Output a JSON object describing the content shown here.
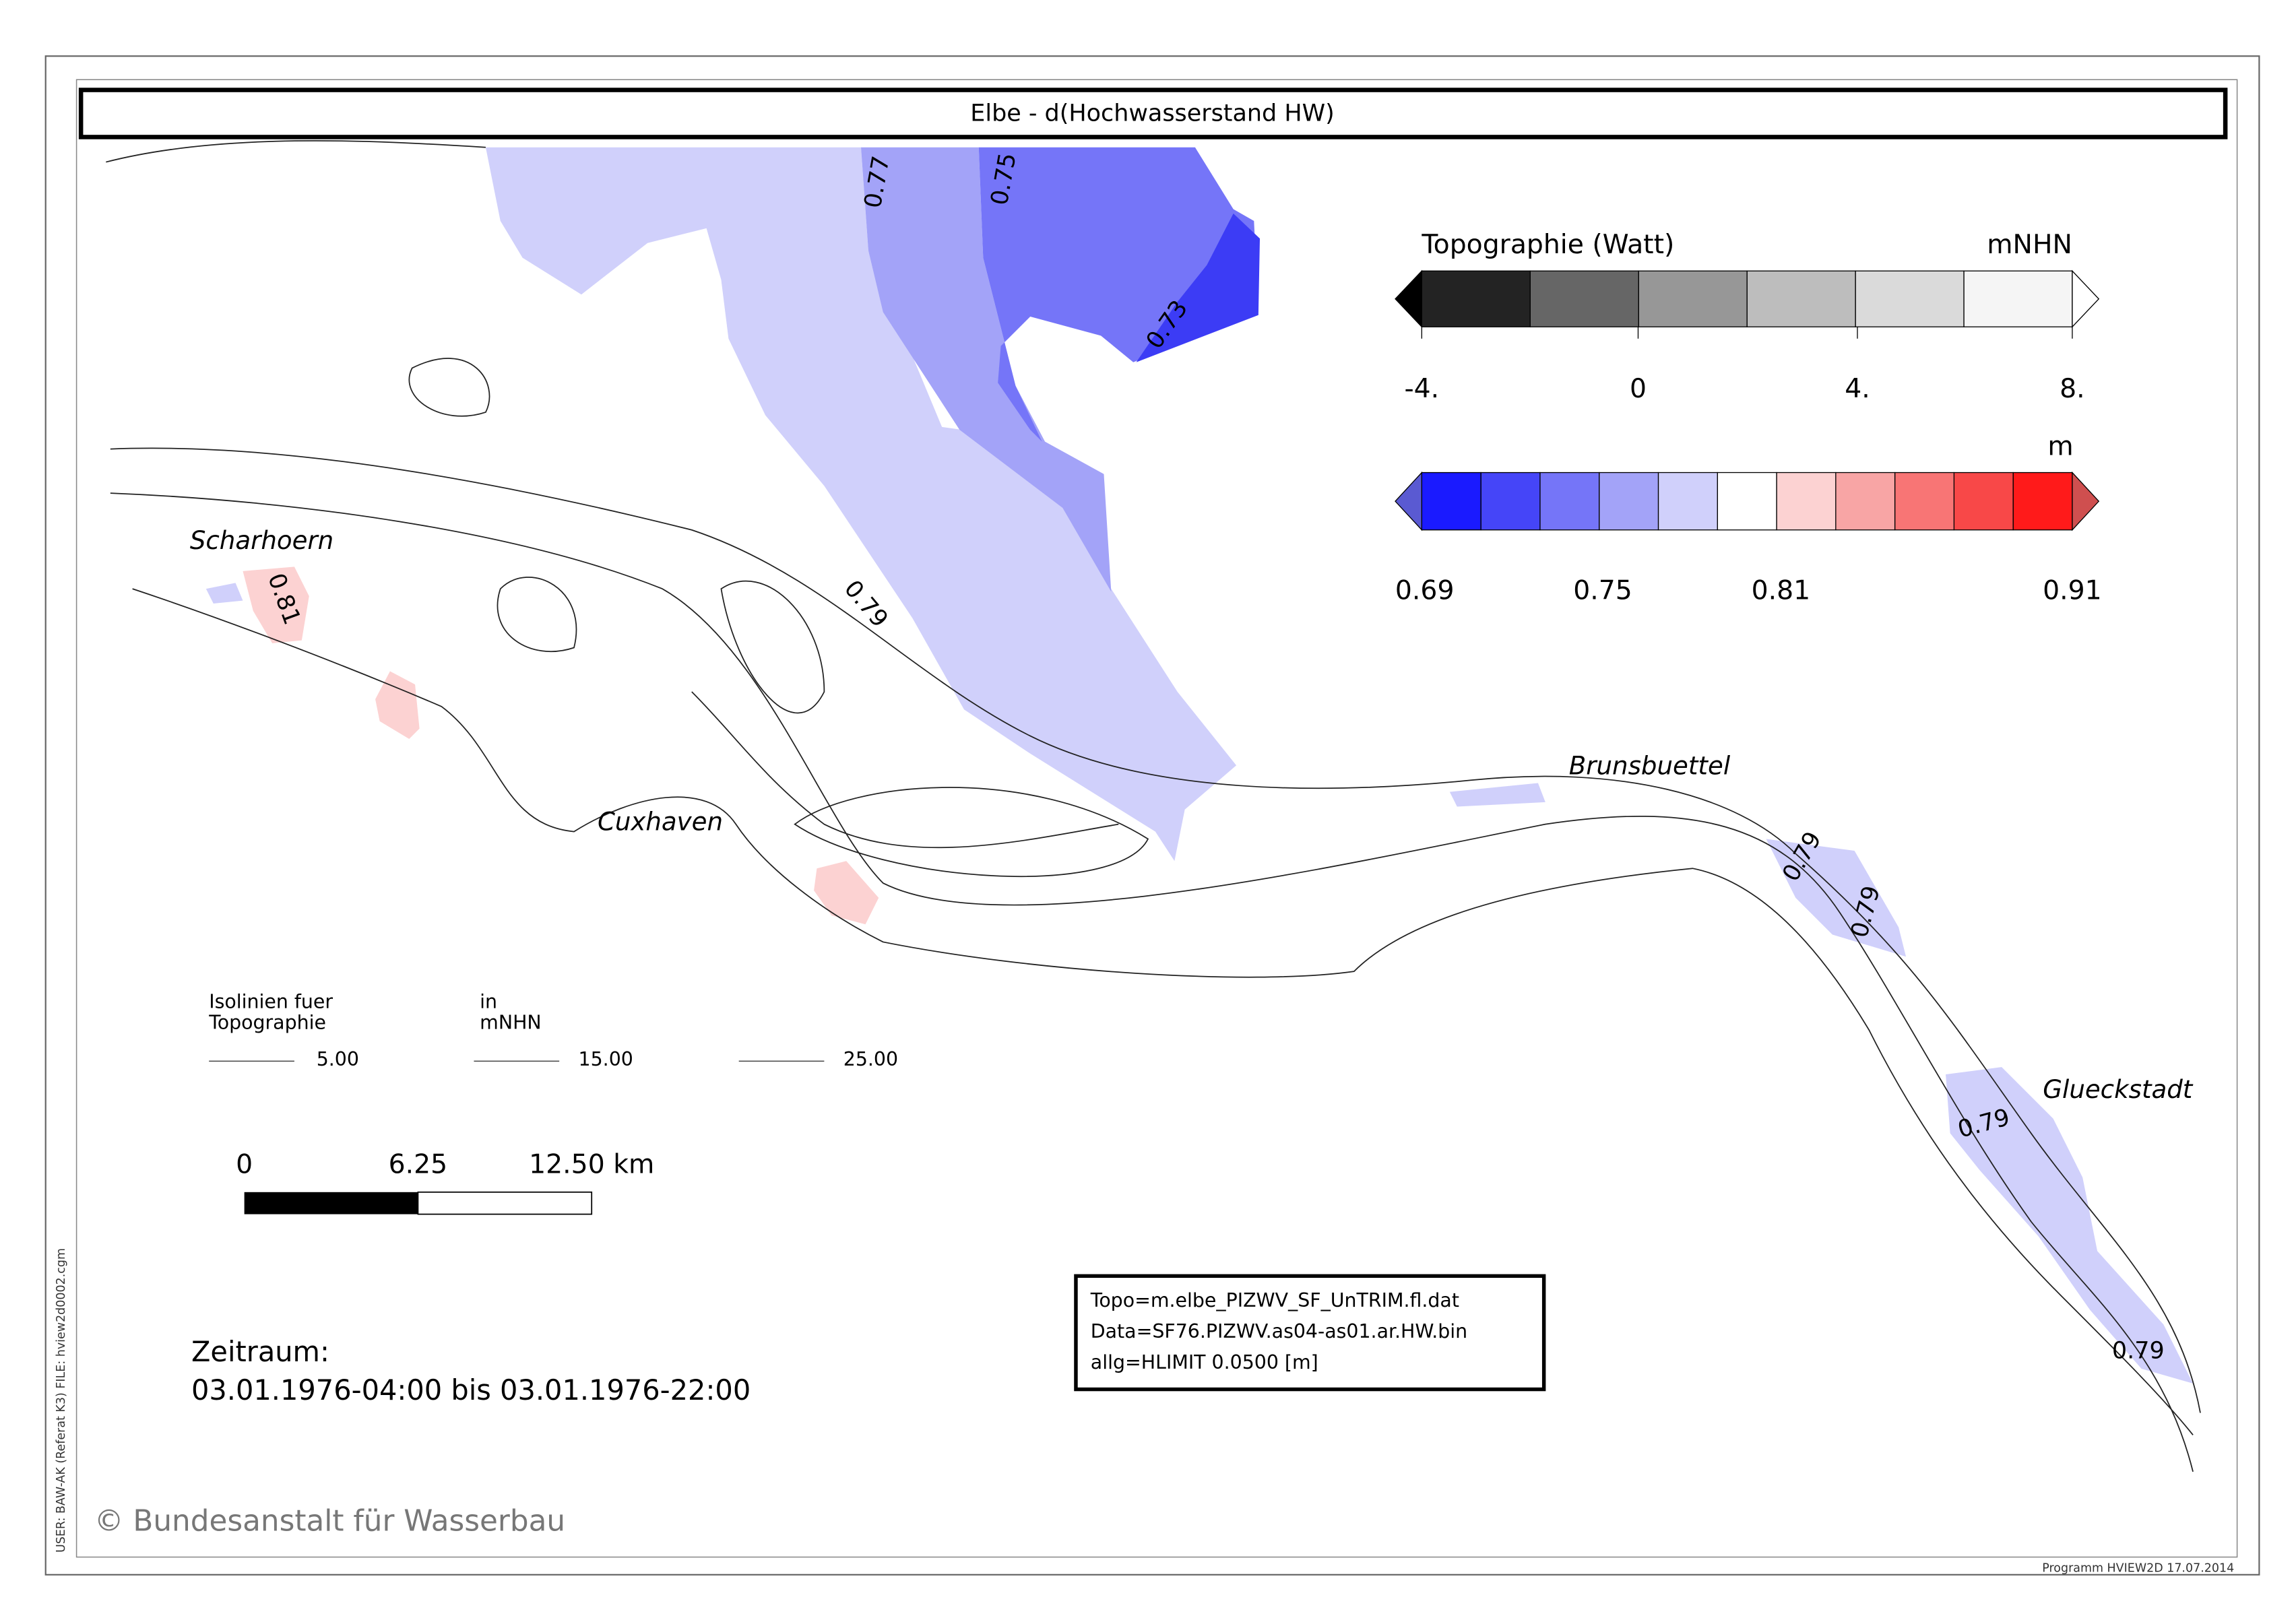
{
  "title": "Elbe - d(Hochwasserstand HW)",
  "topo_legend": {
    "title": "Topographie (Watt)",
    "unit": "mNHN",
    "ticks": [
      "-4.",
      "0",
      "4.",
      "8."
    ],
    "colors": [
      "#000000",
      "#232323",
      "#666666",
      "#979797",
      "#bdbdbd",
      "#dadada",
      "#f5f5f5",
      "#ffffff"
    ]
  },
  "diff_legend": {
    "unit": "m",
    "ticks": [
      "0.69",
      "0.75",
      "0.81",
      "0.91"
    ],
    "colors": [
      "#5a5ad2",
      "#1a1aff",
      "#4545f8",
      "#7575f8",
      "#a3a3f8",
      "#d0d0fb",
      "#ffffff",
      "#fcd2d2",
      "#f8a5a5",
      "#f87575",
      "#f84848",
      "#ff1a1a",
      "#cf4f4f"
    ]
  },
  "places": [
    "Scharhoern",
    "Cuxhaven",
    "Brunsbuettel",
    "Glueckstadt"
  ],
  "contour_labels": [
    "0.77",
    "0.75",
    "0.73",
    "0.79",
    "0.81",
    "0.79",
    "0.79",
    "0.79",
    "0.79"
  ],
  "isoline_legend": {
    "title_1": "Isolinien fuer",
    "title_2": "Topographie",
    "in": "in",
    "unit": "mNHN",
    "levels": [
      "5.00",
      "15.00",
      "25.00"
    ]
  },
  "scale_bar": {
    "labels": [
      "0",
      "6.25",
      "12.50 km"
    ]
  },
  "period": {
    "label": "Zeitraum:",
    "range": "03.01.1976-04:00 bis 03.01.1976-22:00"
  },
  "info": [
    "Topo=m.elbe_PIZWV_SF_UnTRIM.fl.dat",
    "Data=SF76.PIZWV.as04-as01.ar.HW.bin",
    "allg=HLIMIT   0.0500 [m]"
  ],
  "copyright": "© Bundesanstalt für Wasserbau",
  "side_text": "USER: BAW-AK (Referat K3)     FILE: hview2d0002.cgm",
  "footer": "Programm HVIEW2D    17.07.2014"
}
